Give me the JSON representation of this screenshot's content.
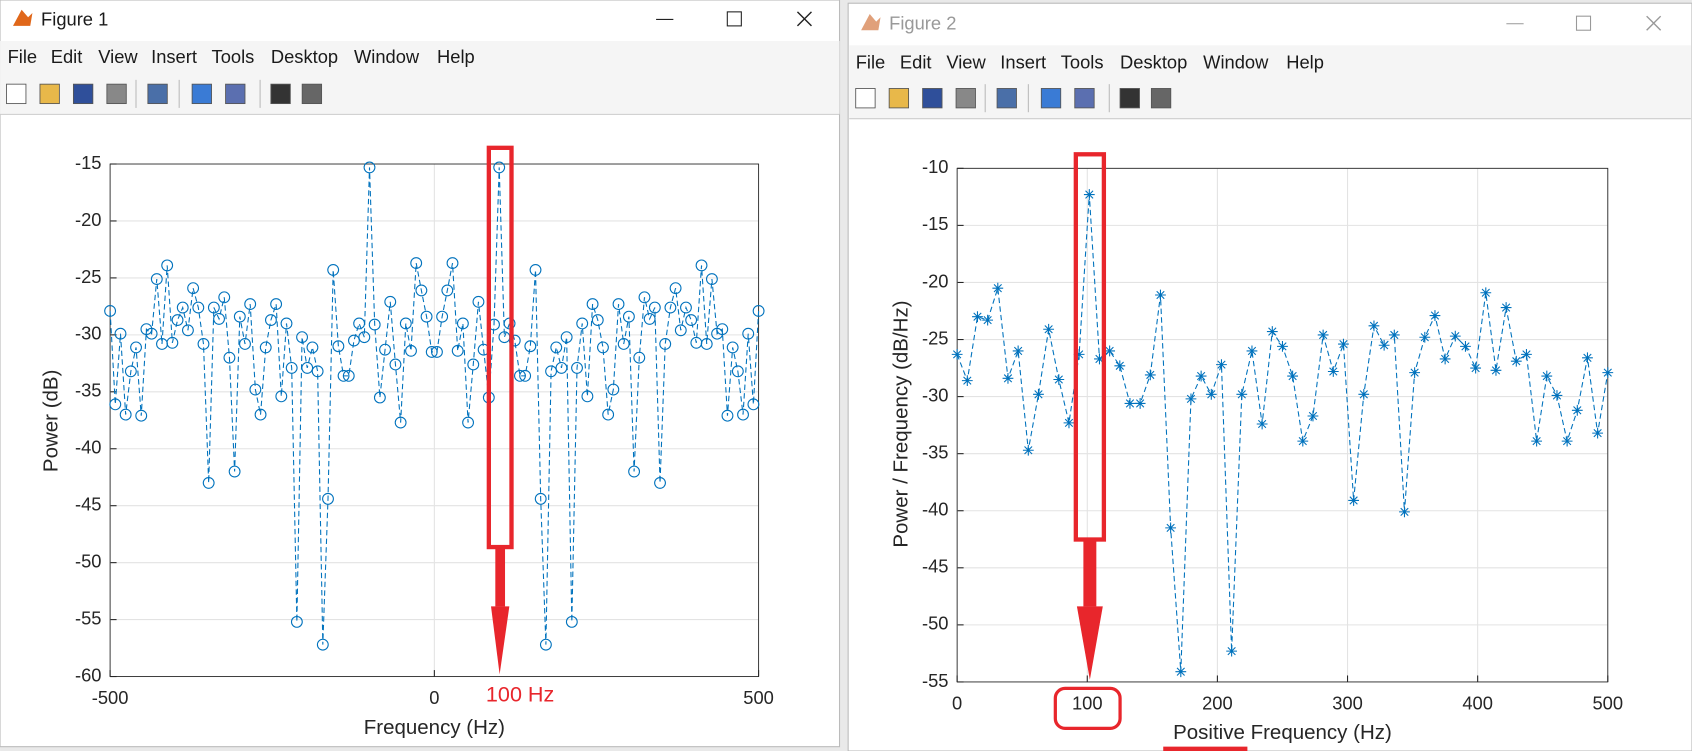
{
  "windows": [
    {
      "title": "Figure 1",
      "menu": [
        "File",
        "Edit",
        "View",
        "Insert",
        "Tools",
        "Desktop",
        "Window",
        "Help"
      ]
    },
    {
      "title": "Figure 2",
      "menu": [
        "File",
        "Edit",
        "View",
        "Insert",
        "Tools",
        "Desktop",
        "Window",
        "Help"
      ]
    }
  ],
  "chart_data": [
    {
      "type": "line",
      "xlabel": "Frequency (Hz)",
      "ylabel": "Power (dB)",
      "annotation": "100 Hz",
      "x": [
        -500,
        -492,
        -484,
        -476,
        -468,
        -460,
        -452,
        -444,
        -436,
        -428,
        -420,
        -412,
        -404,
        -396,
        -388,
        -380,
        -372,
        -364,
        -356,
        -348,
        -340,
        -332,
        -324,
        -316,
        -308,
        -300,
        -292,
        -284,
        -276,
        -268,
        -260,
        -252,
        -244,
        -236,
        -228,
        -220,
        -212,
        -204,
        -196,
        -188,
        -180,
        -172,
        -164,
        -156,
        -148,
        -140,
        -132,
        -124,
        -116,
        -108,
        -100,
        -92,
        -84,
        -76,
        -68,
        -60,
        -52,
        -44,
        -36,
        -28,
        -20,
        -12,
        -4,
        4,
        12,
        20,
        28,
        36,
        44,
        52,
        60,
        68,
        76,
        84,
        92,
        100,
        108,
        116,
        124,
        132,
        140,
        148,
        156,
        164,
        172,
        180,
        188,
        196,
        204,
        212,
        220,
        228,
        236,
        244,
        252,
        260,
        268,
        276,
        284,
        292,
        300,
        308,
        316,
        324,
        332,
        340,
        348,
        356,
        364,
        372,
        380,
        388,
        396,
        404,
        412,
        420,
        428,
        436,
        444,
        452,
        460,
        468,
        476,
        484,
        492,
        500
      ],
      "series": [
        {
          "color": "#0072bd",
          "marker": "circle",
          "values": [
            -27.9,
            -36.1,
            -29.9,
            -37.0,
            -33.2,
            -31.1,
            -37.1,
            -29.5,
            -29.9,
            -25.1,
            -30.8,
            -23.9,
            -30.7,
            -28.7,
            -27.6,
            -29.6,
            -25.9,
            -27.6,
            -30.8,
            -43.0,
            -27.6,
            -28.6,
            -26.7,
            -32.0,
            -42.0,
            -28.4,
            -30.8,
            -27.3,
            -34.8,
            -37.0,
            -31.1,
            -28.7,
            -27.3,
            -35.4,
            -29.0,
            -32.9,
            -55.2,
            -30.2,
            -32.9,
            -31.1,
            -33.2,
            -57.2,
            -44.4,
            -24.3,
            -31.0,
            -33.6,
            -33.6,
            -30.5,
            -29.0,
            -30.2,
            -15.3,
            -29.1,
            -35.5,
            -31.3,
            -27.1,
            -32.6,
            -37.7,
            -29.0,
            -31.4,
            -23.7,
            -26.1,
            -28.4,
            -31.5,
            -31.5,
            -28.4,
            -26.1,
            -23.7,
            -31.4,
            -29.0,
            -37.7,
            -32.6,
            -27.1,
            -31.3,
            -35.5,
            -29.1,
            -15.3,
            -30.2,
            -29.0,
            -30.5,
            -33.6,
            -33.6,
            -31.0,
            -24.3,
            -44.4,
            -57.2,
            -33.2,
            -31.1,
            -32.9,
            -30.2,
            -55.2,
            -32.9,
            -29.0,
            -35.4,
            -27.3,
            -28.7,
            -31.1,
            -37.0,
            -34.8,
            -27.3,
            -30.8,
            -28.4,
            -42.0,
            -32.0,
            -26.7,
            -28.6,
            -27.6,
            -43.0,
            -30.8,
            -27.6,
            -25.9,
            -29.6,
            -27.6,
            -28.7,
            -30.7,
            -23.9,
            -30.8,
            -25.1,
            -29.9,
            -29.5,
            -37.1,
            -31.1,
            -33.2,
            -37.0,
            -29.9,
            -36.1,
            -27.9
          ]
        }
      ],
      "xlim": [
        -500,
        500
      ],
      "ylim": [
        -60,
        -15
      ],
      "xticks": [
        -500,
        0,
        500
      ],
      "yticks": [
        -60,
        -55,
        -50,
        -45,
        -40,
        -35,
        -30,
        -25,
        -20,
        -15
      ],
      "grid": true
    },
    {
      "type": "line",
      "xlabel": "Positive Frequency (Hz)",
      "ylabel": "Power / Frequency (dB/Hz)",
      "x": [
        0,
        7.8125,
        15.625,
        23.4375,
        31.25,
        39.0625,
        46.875,
        54.6875,
        62.5,
        70.3125,
        78.125,
        85.9375,
        93.75,
        101.5625,
        109.375,
        117.1875,
        125,
        132.8125,
        140.625,
        148.4375,
        156.25,
        164.0625,
        171.875,
        179.6875,
        187.5,
        195.3125,
        203.125,
        210.9375,
        218.75,
        226.5625,
        234.375,
        242.1875,
        250,
        257.8125,
        265.625,
        273.4375,
        281.25,
        289.0625,
        296.875,
        304.6875,
        312.5,
        320.3125,
        328.125,
        335.9375,
        343.75,
        351.5625,
        359.375,
        367.1875,
        375,
        382.8125,
        390.625,
        398.4375,
        406.25,
        414.0625,
        421.875,
        429.6875,
        437.5,
        445.3125,
        453.125,
        460.9375,
        468.75,
        476.5625,
        484.375,
        492.1875,
        500
      ],
      "series": [
        {
          "color": "#0072bd",
          "marker": "star",
          "values": [
            -26.3,
            -28.6,
            -23.0,
            -23.3,
            -20.5,
            -28.4,
            -26.0,
            -34.7,
            -29.8,
            -24.1,
            -28.5,
            -32.3,
            -26.3,
            -12.3,
            -26.7,
            -26.0,
            -27.3,
            -30.6,
            -30.6,
            -28.1,
            -21.1,
            -41.5,
            -54.1,
            -30.2,
            -28.2,
            -29.8,
            -27.2,
            -52.3,
            -29.8,
            -26.0,
            -32.4,
            -24.3,
            -25.6,
            -28.2,
            -33.9,
            -31.7,
            -24.6,
            -27.8,
            -25.4,
            -39.1,
            -29.8,
            -23.8,
            -25.5,
            -24.6,
            -40.1,
            -27.9,
            -24.8,
            -22.9,
            -26.7,
            -24.7,
            -25.6,
            -27.5,
            -20.9,
            -27.7,
            -22.2,
            -26.9,
            -26.3,
            -33.9,
            -28.2,
            -29.9,
            -33.9,
            -31.2,
            -26.6,
            -33.2,
            -27.9
          ]
        }
      ],
      "xlim": [
        0,
        500
      ],
      "ylim": [
        -55,
        -10
      ],
      "xticks": [
        0,
        100,
        200,
        300,
        400,
        500
      ],
      "yticks": [
        -55,
        -50,
        -45,
        -40,
        -35,
        -30,
        -25,
        -20,
        -15,
        -10
      ],
      "grid": true
    }
  ]
}
